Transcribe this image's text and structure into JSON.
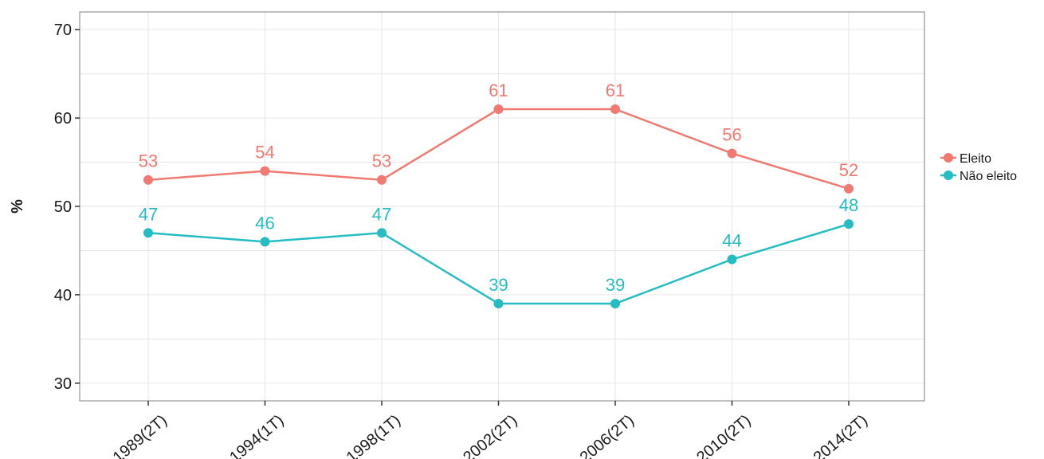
{
  "chart_data": {
    "type": "line",
    "title": "",
    "xlabel": "",
    "ylabel": "%",
    "categories": [
      "1989(2T)",
      "1994(1T)",
      "1998(1T)",
      "2002(2T)",
      "2006(2T)",
      "2010(2T)",
      "2014(2T)"
    ],
    "ylim": [
      28,
      72
    ],
    "yticks": [
      30,
      40,
      50,
      60,
      70
    ],
    "grid": true,
    "legend": "right",
    "series": [
      {
        "name": "Eleito",
        "color": "#f07a72",
        "values": [
          53,
          54,
          53,
          61,
          61,
          56,
          52
        ],
        "labels": [
          "53",
          "54",
          "53",
          "61",
          "61",
          "56",
          "52"
        ]
      },
      {
        "name": "Não eleito",
        "color": "#26bdc2",
        "values": [
          47,
          46,
          47,
          39,
          39,
          44,
          48
        ],
        "labels": [
          "47",
          "46",
          "47",
          "39",
          "39",
          "44",
          "48"
        ]
      }
    ]
  }
}
